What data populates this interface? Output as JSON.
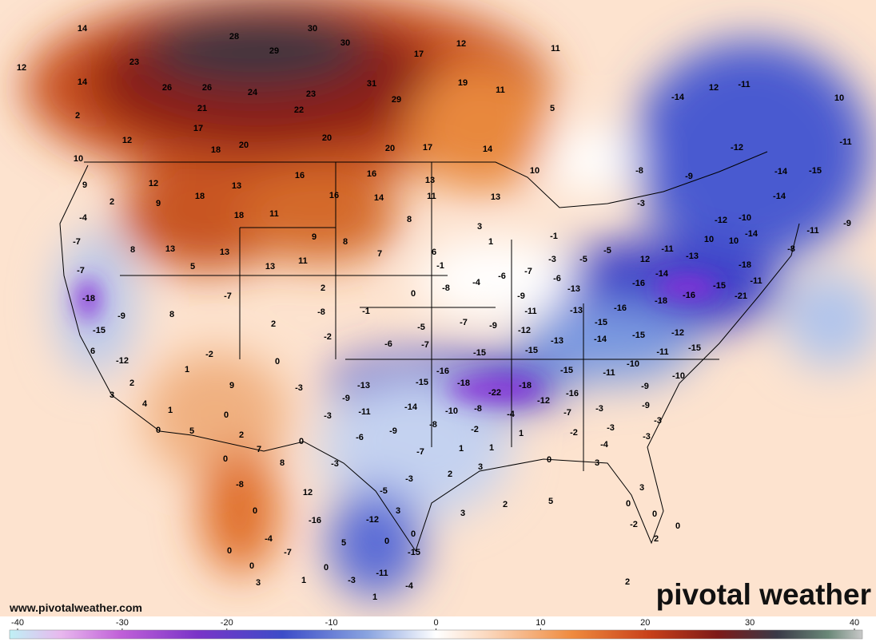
{
  "map": {
    "source_url": "www.pivotalweather.com",
    "brand": "pivotal weather",
    "labels": [
      14,
      28,
      30,
      30,
      29,
      23,
      12,
      14,
      26,
      26,
      24,
      23,
      31,
      29,
      17,
      12,
      11,
      19,
      11,
      2,
      21,
      22,
      17,
      12,
      18,
      20,
      20,
      20,
      17,
      14,
      5,
      10,
      12,
      18,
      13,
      16,
      16,
      13,
      10,
      9,
      2,
      9,
      -4,
      18,
      11,
      16,
      14,
      11,
      13,
      8,
      3,
      -7,
      8,
      13,
      9,
      8,
      13,
      5,
      13,
      11,
      7,
      6,
      -7,
      -18,
      -15,
      -9,
      8,
      -7,
      2,
      -1,
      1,
      -1,
      -3,
      -5,
      -5,
      -3,
      12,
      -11,
      -13,
      10,
      10,
      -14,
      -18,
      -8,
      -9,
      -12,
      12,
      -11,
      -14,
      10,
      -11,
      -14,
      -15,
      -14,
      -10,
      -12,
      -11,
      -9,
      -8,
      0,
      -8,
      -4,
      -6,
      -7,
      -6,
      -8,
      -1,
      2,
      -2,
      -5,
      -7,
      -9,
      -9,
      -11,
      -13,
      -13,
      -16,
      -16,
      -14,
      -15,
      -11,
      -21,
      -16,
      -18,
      -15,
      -15,
      -12,
      -15,
      -11,
      -14,
      -13,
      -15,
      -12,
      -6,
      -7,
      -15,
      -2,
      0,
      6,
      -12,
      1,
      2,
      9,
      -3,
      -10,
      -11,
      -15,
      -10,
      -16,
      -15,
      -18,
      -22,
      -18,
      -16,
      -12,
      -13,
      -9,
      -11,
      -14,
      -10,
      -8,
      -4,
      -7,
      -3,
      -9,
      -9,
      -3,
      3,
      4,
      1,
      0,
      -3,
      -8,
      -9,
      -2,
      1,
      -2,
      -3,
      0,
      5,
      2,
      0,
      7,
      -6,
      -7,
      1,
      1,
      -4,
      -3,
      0,
      8,
      -3,
      0,
      3,
      2,
      -3,
      3,
      -8,
      -5,
      12,
      3,
      3,
      2,
      5,
      0,
      3,
      0,
      0,
      -2,
      -16,
      -12,
      0,
      0,
      -4,
      -7,
      5,
      0,
      0,
      0,
      -15,
      -11,
      -4,
      -3,
      1,
      3,
      1,
      0,
      2,
      2
    ],
    "colorbar": {
      "lim": [
        -40,
        40
      ],
      "ticks": [
        -40,
        -30,
        -20,
        -10,
        0,
        10,
        20,
        30,
        40
      ]
    }
  }
}
